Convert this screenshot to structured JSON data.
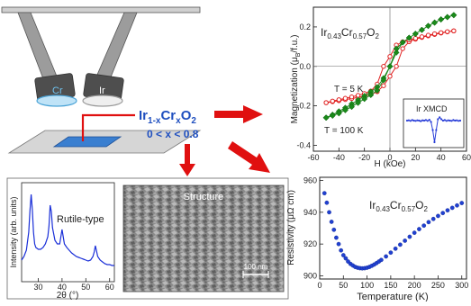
{
  "formula": {
    "base": "Ir",
    "s1": "1-x",
    "mid": "Cr",
    "s2": "x",
    "end": "O",
    "s3": "2"
  },
  "x_range": "0 < x < 0.8",
  "targets": {
    "cr_label": "Cr",
    "ir_label": "Ir"
  },
  "colors": {
    "arrow": "#e01010",
    "formula": "#1f4fbf",
    "series_5k": "#e02020",
    "series_100k": "#1a8a1a",
    "xmcd": "#2a3fd8",
    "xrd": "#1a2fd8",
    "resistivity": "#2040d0"
  },
  "chart_data": [
    {
      "id": "magnetization",
      "type": "line",
      "xlabel": "H (kOe)",
      "ylabel_parts": {
        "a": "Magnetization (μ",
        "sub": "B",
        "b": "/f.u.)"
      },
      "title_parts": {
        "a": "Ir",
        "s1": "0.43",
        "b": "Cr",
        "s2": "0.57",
        "c": "O",
        "s3": "2"
      },
      "xlim": [
        -60,
        60
      ],
      "ylim": [
        -0.43,
        0.3
      ],
      "xticks": [
        -60,
        -40,
        -20,
        0,
        20,
        40,
        60
      ],
      "yticks": [
        -0.4,
        -0.2,
        0.0,
        0.2
      ],
      "ytick_labels": [
        "-0.4",
        "-0.2",
        "0.0",
        "0.2"
      ],
      "series": [
        {
          "name": "T = 5 K",
          "color": "#e02020",
          "marker": "circle",
          "x": [
            -50,
            -45,
            -40,
            -35,
            -30,
            -25,
            -20,
            -15,
            -10,
            -5,
            0,
            5,
            10,
            15,
            20,
            25,
            30,
            35,
            40,
            45,
            50,
            50,
            45,
            40,
            35,
            30,
            25,
            20,
            15,
            10,
            5,
            0,
            -5,
            -10,
            -15,
            -20,
            -25,
            -30,
            -35,
            -40,
            -45,
            -50
          ],
          "y": [
            -0.184,
            -0.179,
            -0.174,
            -0.168,
            -0.163,
            -0.157,
            -0.151,
            -0.143,
            -0.128,
            -0.098,
            -0.05,
            0.0,
            0.09,
            0.125,
            0.138,
            0.147,
            0.155,
            0.162,
            0.169,
            0.175,
            0.18,
            0.18,
            0.176,
            0.171,
            0.165,
            0.158,
            0.15,
            0.142,
            0.134,
            0.124,
            0.108,
            0.05,
            0.0,
            -0.09,
            -0.125,
            -0.138,
            -0.147,
            -0.155,
            -0.162,
            -0.169,
            -0.176,
            -0.184
          ]
        },
        {
          "name": "T = 100 K",
          "color": "#1a8a1a",
          "marker": "diamond",
          "x": [
            -50,
            -45,
            -40,
            -35,
            -30,
            -25,
            -20,
            -15,
            -10,
            -5,
            0,
            5,
            10,
            15,
            20,
            25,
            30,
            35,
            40,
            45,
            50,
            50,
            45,
            40,
            35,
            30,
            25,
            20,
            15,
            10,
            5,
            0,
            -5,
            -10,
            -15,
            -20,
            -25,
            -30,
            -35,
            -40,
            -45,
            -50
          ],
          "y": [
            -0.26,
            -0.245,
            -0.228,
            -0.21,
            -0.19,
            -0.17,
            -0.15,
            -0.128,
            -0.105,
            -0.06,
            0.0,
            0.07,
            0.122,
            0.145,
            0.165,
            0.185,
            0.205,
            0.222,
            0.238,
            0.25,
            0.26,
            0.26,
            0.25,
            0.238,
            0.222,
            0.205,
            0.185,
            0.165,
            0.145,
            0.122,
            0.09,
            0.0,
            -0.07,
            -0.122,
            -0.145,
            -0.165,
            -0.185,
            -0.205,
            -0.222,
            -0.238,
            -0.25,
            -0.26
          ]
        }
      ],
      "annotations": {
        "t5": "T = 5 K",
        "t100": "T = 100 K"
      }
    },
    {
      "id": "xmcd_inset",
      "type": "line",
      "title": "Ir XMCD",
      "series": [
        {
          "color": "#2a3fd8",
          "y": [
            0.0,
            0.01,
            -0.01,
            0.02,
            0.0,
            -0.01,
            0.01,
            0.0,
            -0.02,
            0.01,
            0.0,
            0.02,
            -0.01,
            0.03,
            -0.05,
            -0.35,
            -0.8,
            -0.35,
            0.05,
            0.12,
            0.05,
            0.0,
            0.02,
            -0.01,
            0.01,
            0.0,
            -0.01,
            0.02,
            0.0,
            0.01,
            -0.01,
            0.0
          ]
        }
      ]
    },
    {
      "id": "xrd",
      "type": "line",
      "xlabel": "2θ (°)",
      "ylabel": "Intensity (arb. units)",
      "label": "Rutile-type",
      "xlim": [
        23,
        62
      ],
      "xticks": [
        30,
        40,
        50,
        60
      ],
      "x": [
        23,
        24,
        25,
        26,
        26.5,
        27,
        27.5,
        28,
        28.5,
        29,
        30,
        31,
        32,
        33,
        34,
        34.5,
        35,
        35.5,
        36,
        37,
        38,
        39,
        39.5,
        40,
        40.5,
        41,
        42,
        43,
        44,
        45,
        46,
        47,
        48,
        49,
        50,
        51,
        52,
        53,
        53.5,
        54,
        54.5,
        55,
        56,
        57,
        58,
        59,
        60,
        61,
        62
      ],
      "y": [
        0.24,
        0.28,
        0.35,
        0.55,
        0.78,
        0.97,
        0.8,
        0.55,
        0.42,
        0.38,
        0.36,
        0.36,
        0.38,
        0.42,
        0.5,
        0.62,
        0.85,
        0.78,
        0.6,
        0.46,
        0.42,
        0.42,
        0.5,
        0.58,
        0.5,
        0.42,
        0.38,
        0.35,
        0.32,
        0.3,
        0.28,
        0.27,
        0.26,
        0.25,
        0.24,
        0.23,
        0.24,
        0.28,
        0.33,
        0.4,
        0.34,
        0.28,
        0.24,
        0.22,
        0.2,
        0.19,
        0.19,
        0.18,
        0.18
      ]
    },
    {
      "id": "resistivity",
      "type": "scatter",
      "xlabel": "Temperature (K)",
      "ylabel": "Resistivity (μΩ cm)",
      "title_parts": {
        "a": "Ir",
        "s1": "0.43",
        "b": "Cr",
        "s2": "0.57",
        "c": "O",
        "s3": "2"
      },
      "xlim": [
        0,
        310
      ],
      "ylim": [
        898,
        962
      ],
      "xticks": [
        0,
        50,
        100,
        150,
        200,
        250,
        300
      ],
      "yticks": [
        900,
        920,
        940,
        960
      ],
      "x": [
        10,
        15,
        20,
        25,
        30,
        35,
        40,
        45,
        50,
        55,
        60,
        65,
        70,
        75,
        80,
        85,
        90,
        95,
        100,
        105,
        110,
        115,
        120,
        125,
        130,
        140,
        150,
        160,
        170,
        180,
        190,
        200,
        210,
        220,
        230,
        240,
        250,
        260,
        270,
        280,
        290,
        300
      ],
      "y": [
        952,
        946,
        940,
        934,
        929,
        924,
        920,
        916,
        913,
        911,
        909,
        907.5,
        906.5,
        905.6,
        905.1,
        904.8,
        904.7,
        904.8,
        905.1,
        905.6,
        906.3,
        907.1,
        908,
        909,
        910,
        912.2,
        914.6,
        917.1,
        919.6,
        922.1,
        924.6,
        927.1,
        929.4,
        931.6,
        933.8,
        935.8,
        937.7,
        939.5,
        941.2,
        942.8,
        944.3,
        945.8
      ]
    }
  ],
  "sem": {
    "title": "Structure",
    "scale_label": "100 nm"
  }
}
